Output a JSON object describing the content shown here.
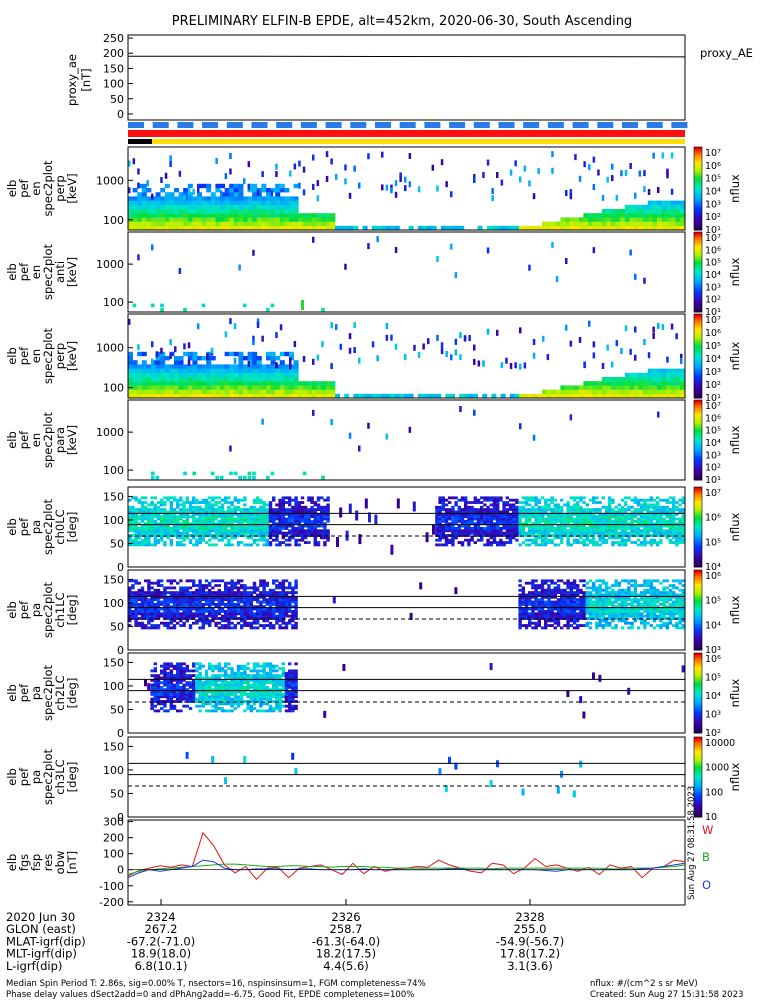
{
  "title": "PRELIMINARY ELFIN-B EPDE, alt=452km, 2020-06-30, South Ascending",
  "colors": {
    "line_red": "#e41414",
    "line_green": "#1aa81a",
    "line_blue": "#1a3ad8",
    "bar_blue": "#2a7ae8",
    "bar_red": "#ff1010",
    "bar_yellow": "#ffdd00"
  },
  "panels": [
    {
      "id": "proxy_ae",
      "ylabel": [
        "proxy_ae",
        "[nT]"
      ],
      "right_label": "proxy_AE",
      "yticks": [
        "250",
        "200",
        "150",
        "100",
        "50",
        "0"
      ]
    },
    {
      "id": "en_perp",
      "ylabel": [
        "elb",
        "pef",
        "en",
        "spec2plot",
        "perp",
        "[keV]"
      ],
      "yticks": [
        "1000",
        "100"
      ],
      "cbar_ticks": [
        "10⁷",
        "10⁶",
        "10⁵",
        "10⁴",
        "10³",
        "10²",
        "10¹"
      ],
      "cbar_label": "nflux"
    },
    {
      "id": "en_anti",
      "ylabel": [
        "elb",
        "pef",
        "en",
        "spec2plot",
        "anti",
        "[keV]"
      ],
      "yticks": [
        "1000",
        "100"
      ],
      "cbar_ticks": [
        "10⁷",
        "10⁶",
        "10⁵",
        "10⁴",
        "10³",
        "10²",
        "10¹"
      ],
      "cbar_label": "nflux"
    },
    {
      "id": "en_para_perp",
      "ylabel": [
        "elb",
        "pef",
        "en",
        "spec2plot",
        "perp",
        "[keV]"
      ],
      "yticks": [
        "1000",
        "100"
      ],
      "cbar_ticks": [
        "10⁷",
        "10⁶",
        "10⁵",
        "10⁴",
        "10³",
        "10²",
        "10¹"
      ],
      "cbar_label": "nflux"
    },
    {
      "id": "en_para",
      "ylabel": [
        "elb",
        "pef",
        "en",
        "spec2plot",
        "para",
        "[keV]"
      ],
      "yticks": [
        "1000",
        "100"
      ],
      "cbar_ticks": [
        "10⁷",
        "10⁶",
        "10⁵",
        "10⁴",
        "10³",
        "10²",
        "10¹"
      ],
      "cbar_label": "nflux"
    },
    {
      "id": "ch0",
      "ylabel": [
        "elb",
        "pef",
        "pa",
        "spec2plot",
        "ch0LC",
        "[deg]"
      ],
      "yticks": [
        "150",
        "100",
        "50",
        "0"
      ],
      "cbar_ticks": [
        "10⁷",
        "10⁶",
        "10⁵",
        "10⁴"
      ],
      "cbar_label": "nflux"
    },
    {
      "id": "ch1",
      "ylabel": [
        "elb",
        "pef",
        "pa",
        "spec2plot",
        "ch1LC",
        "[deg]"
      ],
      "yticks": [
        "150",
        "100",
        "50",
        "0"
      ],
      "cbar_ticks": [
        "10⁶",
        "10⁵",
        "10⁴",
        "10³"
      ],
      "cbar_label": "nflux"
    },
    {
      "id": "ch2",
      "ylabel": [
        "elb",
        "pef",
        "pa",
        "spec2plot",
        "ch2LC",
        "[deg]"
      ],
      "yticks": [
        "150",
        "100",
        "50",
        "0"
      ],
      "cbar_ticks": [
        "10⁶",
        "10⁵",
        "10⁴",
        "10³",
        "10²"
      ],
      "cbar_label": "nflux"
    },
    {
      "id": "ch3",
      "ylabel": [
        "elb",
        "pef",
        "pa",
        "spec2plot",
        "ch3LC",
        "[deg]"
      ],
      "yticks": [
        "150",
        "100",
        "50",
        "0"
      ],
      "cbar_ticks": [
        "10000",
        "1000",
        "100",
        "10"
      ],
      "cbar_label": "nflux"
    },
    {
      "id": "fgs",
      "ylabel": [
        "elb",
        "fgs",
        "fsp",
        "res",
        "obw",
        "[nT]"
      ],
      "yticks": [
        "300",
        "200",
        "100",
        "0",
        "-100",
        "-200"
      ],
      "legend": [
        "W",
        "B",
        "O"
      ],
      "side_note": "Sun Aug 27 08:31:58 2023"
    }
  ],
  "chart_data": {
    "type": "line",
    "title": "PRELIMINARY ELFIN-B EPDE, alt=452km, 2020-06-30, South Ascending",
    "proxy_ae": {
      "ylim": [
        -20,
        260
      ],
      "x": [
        "start",
        "2323.85",
        "2329.9"
      ],
      "values": [
        190,
        190,
        188
      ]
    },
    "fgs_residuals": {
      "ylim": [
        -220,
        310
      ],
      "series": [
        {
          "name": "W",
          "values": [
            -40,
            -5,
            10,
            25,
            15,
            30,
            20,
            230,
            150,
            30,
            -20,
            20,
            -60,
            10,
            15,
            -50,
            10,
            20,
            30,
            0,
            -30,
            40,
            -25,
            20,
            -10,
            5,
            10,
            20,
            15,
            60,
            30,
            10,
            -10,
            -20,
            40,
            30,
            -25,
            10,
            70,
            20,
            30,
            10,
            -10,
            15,
            -30,
            30,
            10,
            20,
            -50,
            10,
            20,
            60,
            50
          ]
        },
        {
          "name": "B",
          "values": [
            -30,
            -10,
            0,
            5,
            10,
            15,
            20,
            25,
            30,
            35,
            35,
            30,
            25,
            20,
            20,
            25,
            25,
            20,
            20,
            15,
            20,
            20,
            20,
            15,
            15,
            10,
            10,
            10,
            10,
            10,
            10,
            10,
            10,
            10,
            5,
            10,
            10,
            10,
            10,
            10,
            10,
            10,
            10,
            10,
            10,
            5,
            5,
            10,
            10,
            10,
            15,
            20,
            30
          ]
        },
        {
          "name": "O",
          "values": [
            -50,
            -20,
            0,
            -10,
            0,
            10,
            20,
            60,
            50,
            10,
            0,
            0,
            5,
            5,
            5,
            0,
            5,
            5,
            0,
            0,
            0,
            0,
            5,
            0,
            0,
            0,
            0,
            0,
            0,
            0,
            5,
            5,
            0,
            0,
            0,
            0,
            0,
            0,
            0,
            -5,
            -10,
            0,
            0,
            0,
            0,
            0,
            0,
            0,
            5,
            10,
            20,
            30,
            40
          ]
        }
      ]
    },
    "x_axis": {
      "rows": [
        {
          "label": "2020 Jun 30",
          "values": [
            "2324",
            "2326",
            "2328"
          ]
        },
        {
          "label": "GLON (east)",
          "values": [
            "267.2",
            "258.7",
            "255.0"
          ]
        },
        {
          "label": "MLAT-igrf(dip)",
          "values": [
            "-67.2(-71.0)",
            "-61.3(-64.0)",
            "-54.9(-56.7)"
          ]
        },
        {
          "label": "MLT-igrf(dip)",
          "values": [
            "18.9(18.0)",
            "18.2(17.5)",
            "17.8(17.2)"
          ]
        },
        {
          "label": "L-igrf(dip)",
          "values": [
            "6.8(10.1)",
            "4.4(5.6)",
            "3.1(3.6)"
          ]
        }
      ]
    }
  },
  "footer": {
    "line1": "Median Spin Period T: 2.86s, sig=0.00% T, nsectors=16, nspinsinsum=1, FGM completeness=74%",
    "line2": "Phase delay values dSect2add=0 and dPhAng2add=-6.75, Good Fit, EPDE completeness=100%",
    "units": "nflux: #/(cm^2 s sr MeV)",
    "created": "Created: Sun Aug 27 15:31:58 2023"
  }
}
